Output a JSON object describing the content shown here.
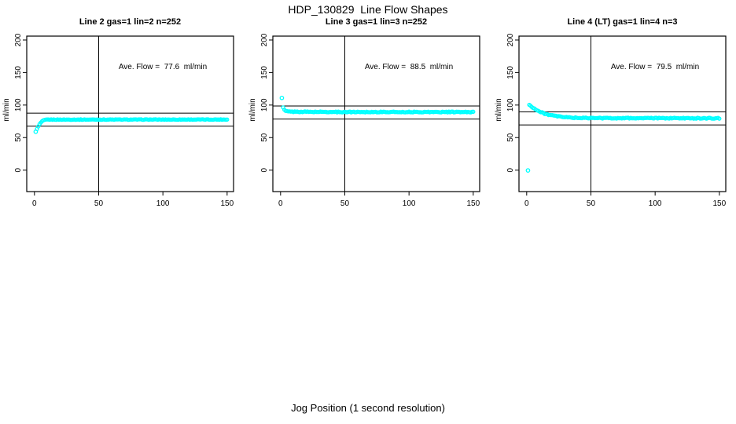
{
  "figure": {
    "title": "HDP_130829  Line Flow Shapes",
    "xlabel": "Jog Position (1 second resolution)",
    "background": "#FFFFFF",
    "point_color": "#00FFFF",
    "line_color": "#000000"
  },
  "chart_data": [
    {
      "type": "scatter",
      "title": "Line 2 gas=1 lin=2 n=252",
      "ylabel": "ml/min",
      "annotation": "Ave. Flow =  77.6  ml/min",
      "ave_flow": 77.6,
      "xlim": [
        -6,
        155
      ],
      "ylim": [
        -33,
        206
      ],
      "xticks": [
        0,
        50,
        100,
        150
      ],
      "yticks": [
        0,
        50,
        100,
        150,
        200
      ],
      "vline_x": 50,
      "hlines": [
        87.6,
        67.6
      ],
      "annotation_at": [
        100,
        150
      ],
      "point_color": "#00FFFF",
      "marker": "open-circle",
      "isolated_points": [
        [
          1,
          59
        ]
      ],
      "x_start": 2,
      "x_end": 150,
      "series_anchors": [
        [
          2,
          63
        ],
        [
          3,
          67
        ],
        [
          4,
          70.5
        ],
        [
          5,
          73
        ],
        [
          6,
          75
        ],
        [
          7,
          76.3
        ],
        [
          8,
          77
        ],
        [
          10,
          77.7
        ],
        [
          150,
          77.8
        ]
      ],
      "jitter": 0.4
    },
    {
      "type": "scatter",
      "title": "Line 3 gas=1 lin=3 n=252",
      "ylabel": "ml/min",
      "annotation": "Ave. Flow =  88.5  ml/min",
      "ave_flow": 88.5,
      "xlim": [
        -6,
        155
      ],
      "ylim": [
        -33,
        206
      ],
      "xticks": [
        0,
        50,
        100,
        150
      ],
      "yticks": [
        0,
        50,
        100,
        150,
        200
      ],
      "vline_x": 50,
      "hlines": [
        98.5,
        78.5
      ],
      "annotation_at": [
        100,
        150
      ],
      "point_color": "#00FFFF",
      "marker": "open-circle",
      "isolated_points": [
        [
          1,
          111
        ]
      ],
      "x_start": 2,
      "x_end": 150,
      "series_anchors": [
        [
          2,
          96
        ],
        [
          3,
          92.5
        ],
        [
          4,
          91
        ],
        [
          5,
          90.3
        ],
        [
          8,
          89.8
        ],
        [
          40,
          89.4
        ],
        [
          150,
          89.3
        ]
      ],
      "jitter": 0.6
    },
    {
      "type": "scatter",
      "title": "Line 4 (LT) gas=1 lin=4 n=3",
      "ylabel": "ml/min",
      "annotation": "Ave. Flow =  79.5  ml/min",
      "ave_flow": 79.5,
      "xlim": [
        -6,
        155
      ],
      "ylim": [
        -33,
        206
      ],
      "xticks": [
        0,
        50,
        100,
        150
      ],
      "yticks": [
        0,
        50,
        100,
        150,
        200
      ],
      "vline_x": 50,
      "hlines": [
        89.5,
        69.5
      ],
      "annotation_at": [
        100,
        150
      ],
      "point_color": "#00FFFF",
      "marker": "open-circle",
      "isolated_points": [
        [
          1,
          -0.5
        ]
      ],
      "x_start": 2,
      "x_end": 150,
      "series_anchors": [
        [
          2,
          100
        ],
        [
          3,
          99
        ],
        [
          4,
          97.5
        ],
        [
          6,
          94.5
        ],
        [
          8,
          92
        ],
        [
          10,
          90
        ],
        [
          12,
          88.3
        ],
        [
          15,
          86.2
        ],
        [
          18,
          84.7
        ],
        [
          22,
          83.2
        ],
        [
          26,
          82.2
        ],
        [
          30,
          81.4
        ],
        [
          35,
          80.8
        ],
        [
          40,
          80.3
        ],
        [
          50,
          80
        ],
        [
          150,
          79.7
        ]
      ],
      "jitter": 0.7
    }
  ]
}
